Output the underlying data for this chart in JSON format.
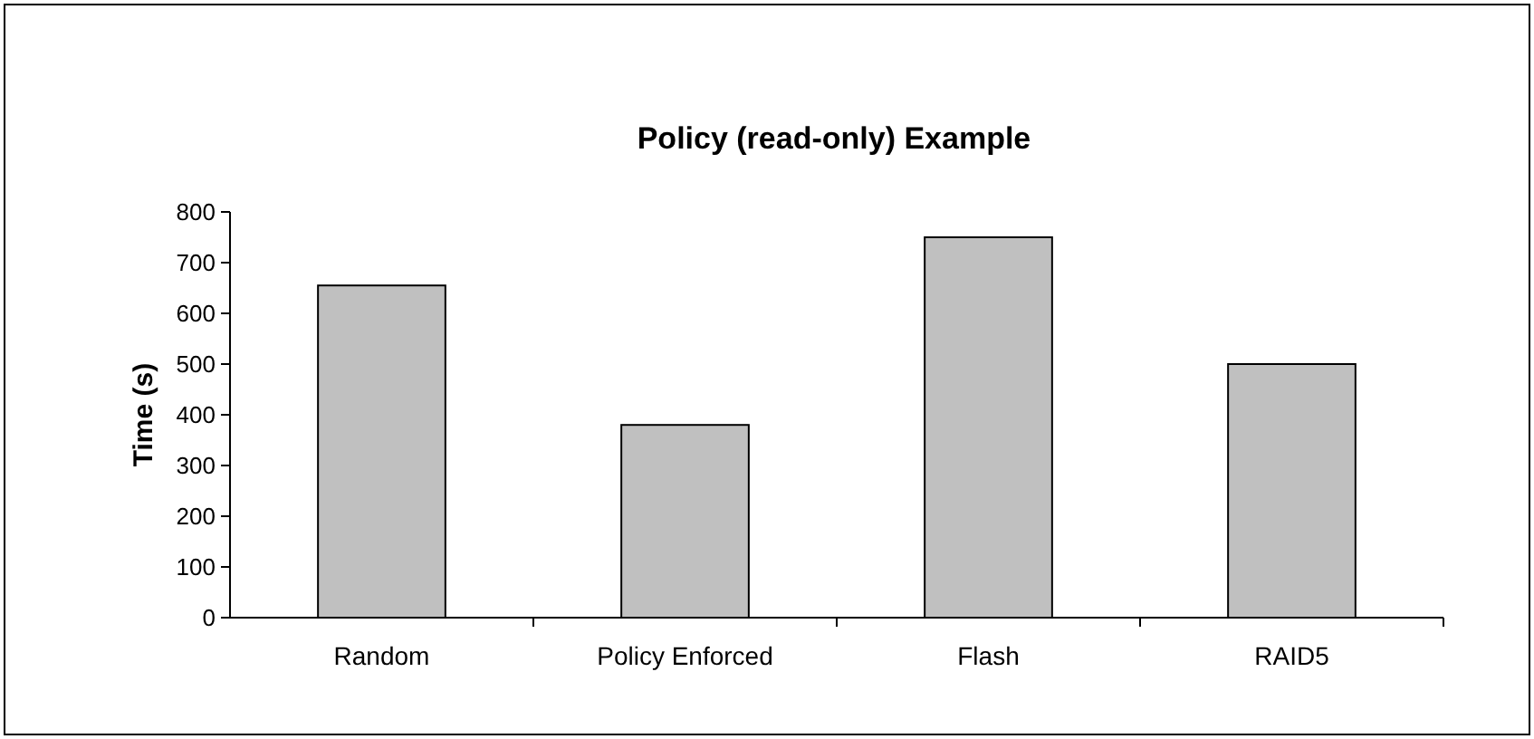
{
  "chart_data": {
    "type": "bar",
    "title": "Policy (read-only) Example",
    "ylabel": "Time (s)",
    "categories": [
      "Random",
      "Policy Enforced",
      "Flash",
      "RAID5"
    ],
    "values": [
      655,
      380,
      750,
      500
    ],
    "color": "#c0c0c0",
    "ylim": [
      0,
      800
    ],
    "yticks": [
      0,
      100,
      200,
      300,
      400,
      500,
      600,
      700,
      800
    ],
    "grid": false
  }
}
